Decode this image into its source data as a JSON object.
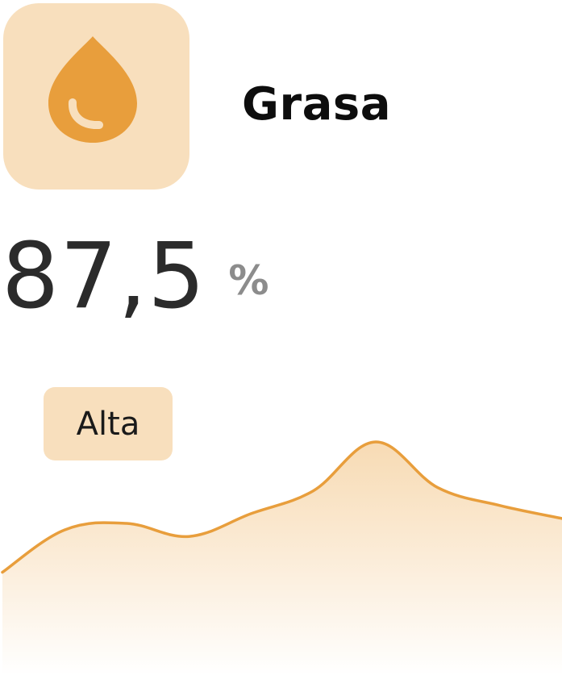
{
  "metric": {
    "title": "Grasa",
    "value": "87,5",
    "unit": "%",
    "level": "Alta",
    "icon": "drop-icon"
  },
  "colors": {
    "accent": "#E89E3C",
    "tile_background": "#F8DFBD",
    "badge_background": "#F8DFBD",
    "value_text": "#2B2B2B",
    "unit_text": "#8C8C8C"
  },
  "trend": {
    "type": "area",
    "y_values": [
      20,
      46,
      50,
      42,
      56,
      70,
      100,
      72,
      61,
      53
    ]
  }
}
